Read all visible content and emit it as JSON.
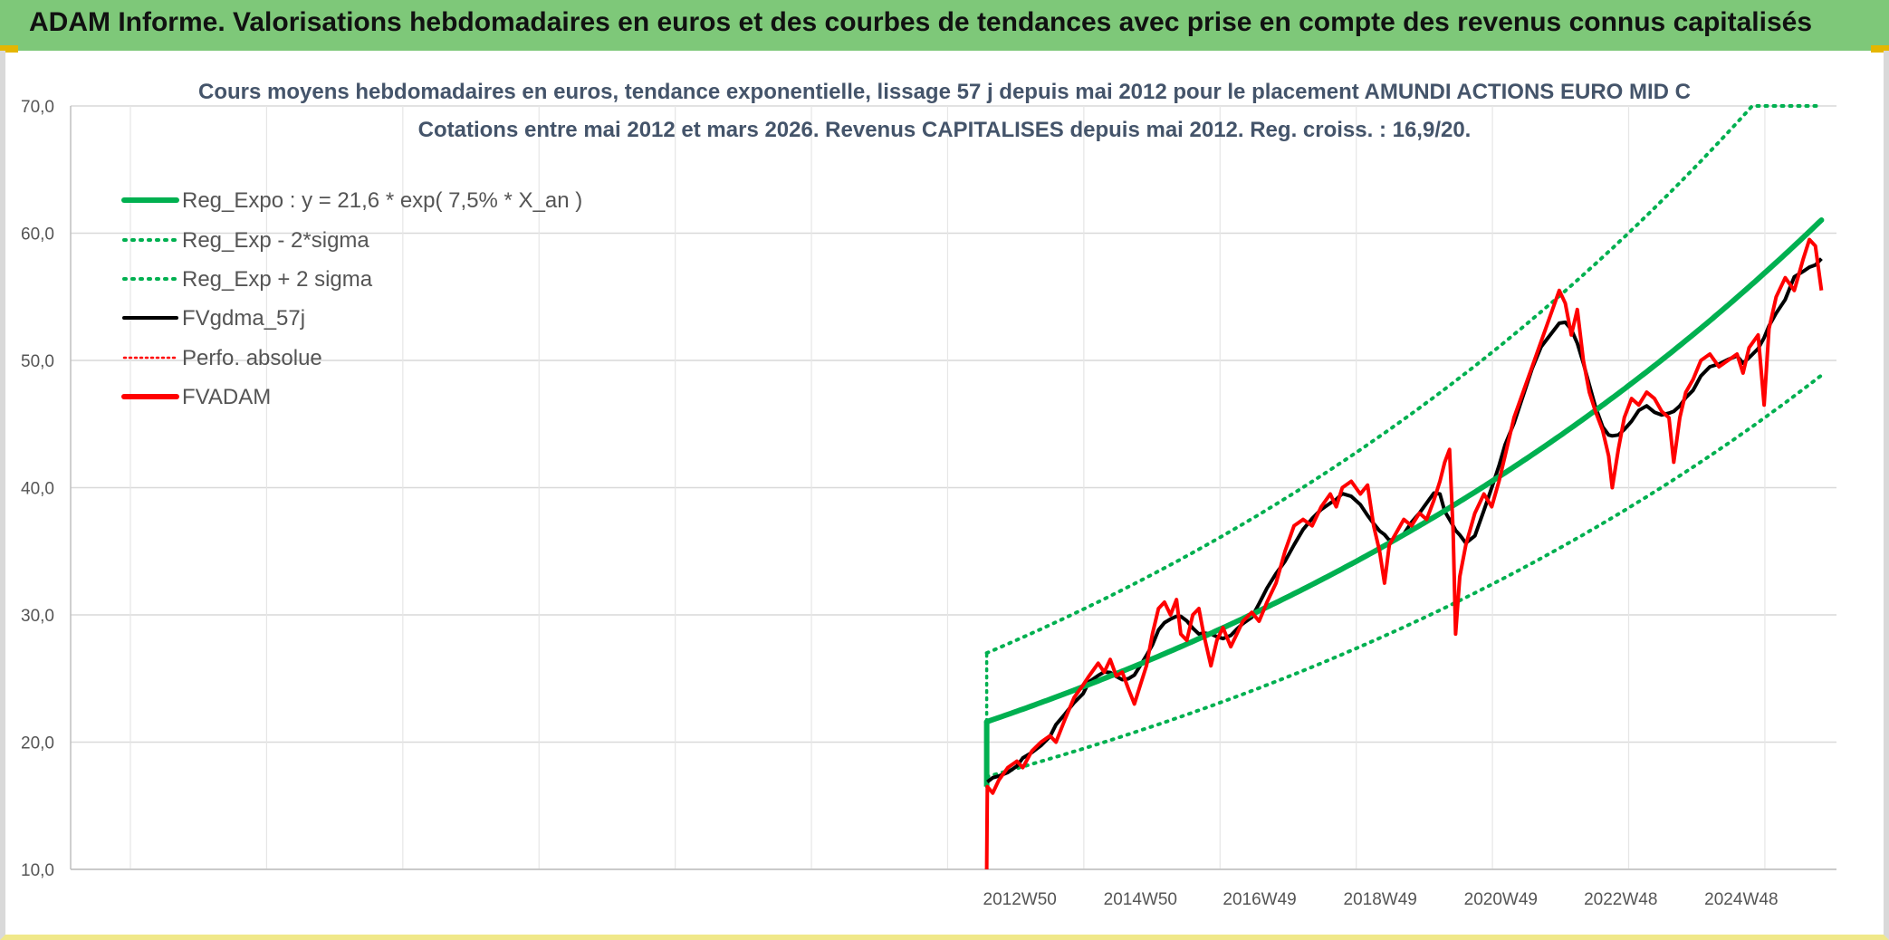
{
  "header": {
    "title": "ADAM Informe. Valorisations hebdomadaires en euros et des courbes de tendances avec prise en compte des revenus connus capitalisés"
  },
  "colors": {
    "banner": "#7ec879",
    "reg_expo": "#00b050",
    "fvgdma": "#000000",
    "fvadam": "#ff0000",
    "perfo": "#ff0000",
    "grid": "#d9d9d9"
  },
  "chart_data": {
    "type": "line",
    "title": "Cours moyens hebdomadaires en euros, tendance exponentielle, lissage 57 j depuis mai 2012 pour le placement AMUNDI ACTIONS EURO MID C",
    "subtitle": "Cotations entre mai 2012 et mars 2026. Revenus CAPITALISES depuis mai 2012. Reg. croiss. : 16,9/20.",
    "ylim": [
      10,
      70
    ],
    "yticks": [
      "10,0",
      "20,0",
      "30,0",
      "40,0",
      "50,0",
      "60,0",
      "70,0"
    ],
    "xlim": [
      1997.2,
      2026.5
    ],
    "xticks": [
      {
        "label": "2012W50",
        "x": 2012.95
      },
      {
        "label": "2014W50",
        "x": 2014.95
      },
      {
        "label": "2016W49",
        "x": 2016.93
      },
      {
        "label": "2018W49",
        "x": 2018.93
      },
      {
        "label": "2020W49",
        "x": 2020.93
      },
      {
        "label": "2022W48",
        "x": 2022.92
      },
      {
        "label": "2024W48",
        "x": 2024.92
      }
    ],
    "grid": true,
    "legend_position": "top-left",
    "regression": {
      "a": 21.6,
      "rate": 0.075,
      "start": 2012.4,
      "end": 2026.25,
      "ceiling": 70
    },
    "series": [
      {
        "name": "Reg_Expo : y = 21,6 * exp( 7,5% *  X_an )",
        "style": "solid-thick",
        "color": "#00b050"
      },
      {
        "name": "Reg_Exp - 2*sigma",
        "style": "dotted",
        "color": "#00b050"
      },
      {
        "name": "Reg_Exp + 2 sigma",
        "style": "dotted",
        "color": "#00b050"
      },
      {
        "name": "FVgdma_57j",
        "style": "solid",
        "color": "#000000"
      },
      {
        "name": "Perfo. absolue",
        "style": "dotted",
        "color": "#ff0000"
      },
      {
        "name": "FVADAM",
        "style": "solid-thick",
        "color": "#ff0000",
        "points": [
          [
            2012.4,
            10.0
          ],
          [
            2012.41,
            16.5
          ],
          [
            2012.5,
            16.0
          ],
          [
            2012.6,
            17.0
          ],
          [
            2012.75,
            18.0
          ],
          [
            2012.9,
            18.5
          ],
          [
            2013.0,
            18.0
          ],
          [
            2013.15,
            19.3
          ],
          [
            2013.3,
            20.0
          ],
          [
            2013.45,
            20.5
          ],
          [
            2013.55,
            20.0
          ],
          [
            2013.7,
            21.8
          ],
          [
            2013.85,
            23.5
          ],
          [
            2014.0,
            24.5
          ],
          [
            2014.1,
            25.2
          ],
          [
            2014.25,
            26.2
          ],
          [
            2014.35,
            25.5
          ],
          [
            2014.45,
            26.5
          ],
          [
            2014.55,
            25.2
          ],
          [
            2014.65,
            25.5
          ],
          [
            2014.75,
            24.2
          ],
          [
            2014.85,
            23.0
          ],
          [
            2014.95,
            24.5
          ],
          [
            2015.05,
            26.0
          ],
          [
            2015.15,
            28.5
          ],
          [
            2015.25,
            30.5
          ],
          [
            2015.35,
            31.0
          ],
          [
            2015.45,
            30.0
          ],
          [
            2015.55,
            31.2
          ],
          [
            2015.62,
            28.5
          ],
          [
            2015.72,
            28.0
          ],
          [
            2015.82,
            30.0
          ],
          [
            2015.92,
            30.5
          ],
          [
            2016.0,
            28.5
          ],
          [
            2016.12,
            26.0
          ],
          [
            2016.22,
            28.0
          ],
          [
            2016.32,
            29.0
          ],
          [
            2016.45,
            27.5
          ],
          [
            2016.55,
            28.5
          ],
          [
            2016.65,
            29.5
          ],
          [
            2016.8,
            30.2
          ],
          [
            2016.92,
            29.5
          ],
          [
            2017.05,
            31.0
          ],
          [
            2017.2,
            32.5
          ],
          [
            2017.35,
            35.0
          ],
          [
            2017.5,
            37.0
          ],
          [
            2017.65,
            37.5
          ],
          [
            2017.8,
            37.0
          ],
          [
            2017.95,
            38.5
          ],
          [
            2018.1,
            39.5
          ],
          [
            2018.2,
            38.5
          ],
          [
            2018.3,
            40.0
          ],
          [
            2018.45,
            40.5
          ],
          [
            2018.6,
            39.5
          ],
          [
            2018.72,
            40.2
          ],
          [
            2018.82,
            37.0
          ],
          [
            2018.92,
            35.0
          ],
          [
            2019.0,
            32.5
          ],
          [
            2019.08,
            35.5
          ],
          [
            2019.2,
            36.5
          ],
          [
            2019.32,
            37.5
          ],
          [
            2019.45,
            37.0
          ],
          [
            2019.58,
            38.0
          ],
          [
            2019.7,
            37.5
          ],
          [
            2019.82,
            39.0
          ],
          [
            2019.92,
            40.5
          ],
          [
            2020.0,
            42.0
          ],
          [
            2020.08,
            43.0
          ],
          [
            2020.14,
            36.5
          ],
          [
            2020.18,
            28.5
          ],
          [
            2020.25,
            33.0
          ],
          [
            2020.35,
            35.5
          ],
          [
            2020.5,
            38.0
          ],
          [
            2020.65,
            39.5
          ],
          [
            2020.78,
            38.5
          ],
          [
            2020.9,
            40.5
          ],
          [
            2021.0,
            42.5
          ],
          [
            2021.15,
            45.5
          ],
          [
            2021.3,
            47.5
          ],
          [
            2021.45,
            49.5
          ],
          [
            2021.6,
            51.5
          ],
          [
            2021.75,
            53.5
          ],
          [
            2021.9,
            55.5
          ],
          [
            2022.0,
            54.5
          ],
          [
            2022.1,
            52.0
          ],
          [
            2022.2,
            54.0
          ],
          [
            2022.3,
            50.0
          ],
          [
            2022.4,
            47.5
          ],
          [
            2022.5,
            46.0
          ],
          [
            2022.62,
            44.5
          ],
          [
            2022.72,
            42.5
          ],
          [
            2022.78,
            40.0
          ],
          [
            2022.88,
            43.0
          ],
          [
            2022.98,
            45.5
          ],
          [
            2023.1,
            47.0
          ],
          [
            2023.22,
            46.5
          ],
          [
            2023.35,
            47.5
          ],
          [
            2023.48,
            47.0
          ],
          [
            2023.6,
            46.0
          ],
          [
            2023.72,
            45.5
          ],
          [
            2023.8,
            42.0
          ],
          [
            2023.9,
            45.5
          ],
          [
            2024.0,
            47.5
          ],
          [
            2024.12,
            48.5
          ],
          [
            2024.25,
            50.0
          ],
          [
            2024.4,
            50.5
          ],
          [
            2024.55,
            49.5
          ],
          [
            2024.7,
            50.0
          ],
          [
            2024.85,
            50.5
          ],
          [
            2024.95,
            49.0
          ],
          [
            2025.05,
            51.0
          ],
          [
            2025.2,
            52.0
          ],
          [
            2025.3,
            46.5
          ],
          [
            2025.38,
            52.5
          ],
          [
            2025.5,
            55.0
          ],
          [
            2025.65,
            56.5
          ],
          [
            2025.8,
            55.5
          ],
          [
            2025.95,
            58.0
          ],
          [
            2026.05,
            59.5
          ],
          [
            2026.15,
            59.0
          ],
          [
            2026.25,
            55.5
          ]
        ]
      }
    ]
  }
}
